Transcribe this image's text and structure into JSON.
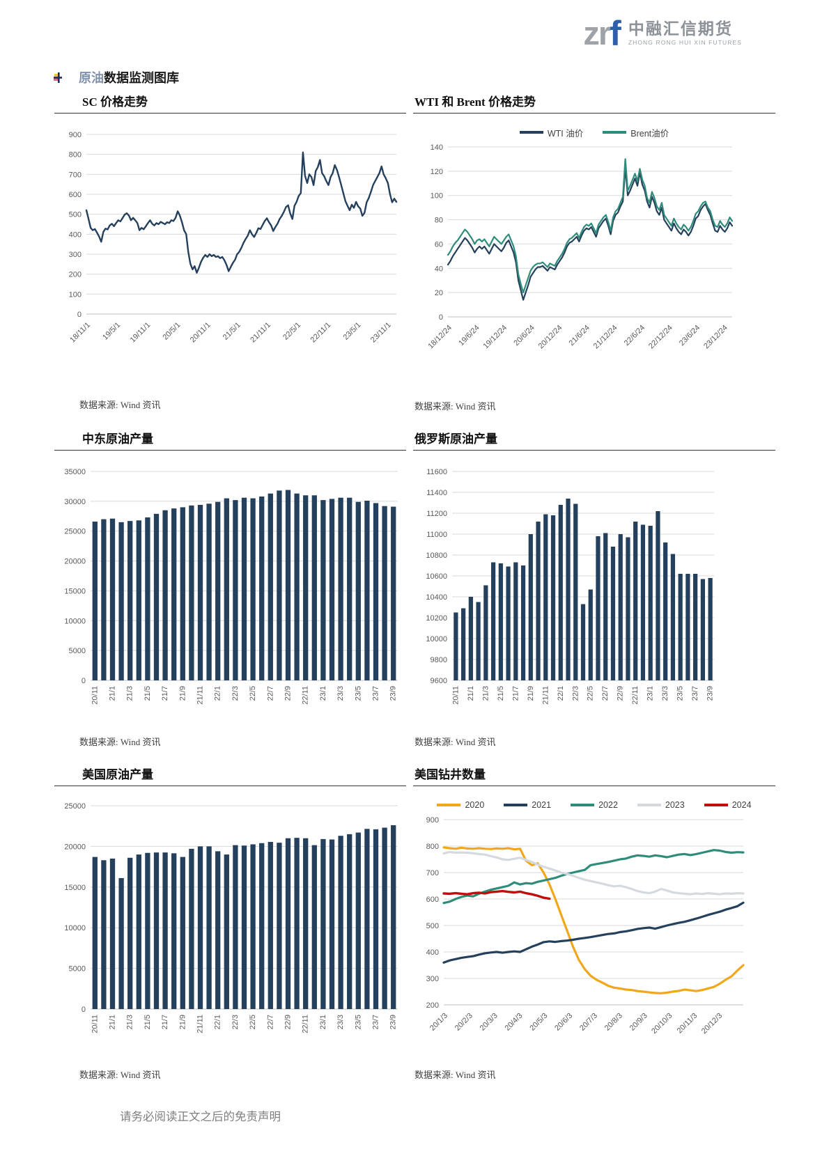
{
  "header": {
    "logo_zr": "zr",
    "logo_f": "f",
    "company_cn": "中融汇信期货",
    "company_en": "ZHONG RONG HUI XIN FUTURES"
  },
  "page_title": {
    "highlight": "原油",
    "rest": "数据监测图库"
  },
  "source_label": "数据来源: Wind 资讯",
  "footer": {
    "disclaimer": "请务必阅读正文之后的免责声明"
  },
  "colors": {
    "navy": "#24405C",
    "teal": "#2E8C7A",
    "orange": "#F2A71B",
    "gray_2023": "#D6DADE",
    "red_2024": "#C00D0D",
    "logo_blue": "#2F5FA8",
    "grid": "#D9D9D9"
  },
  "chart_data": [
    {
      "type": "line",
      "title": "SC 价格走势",
      "y_min": 0,
      "y_max": 900,
      "y_step": 100,
      "x_labels": [
        "18/11/1",
        "19/5/1",
        "19/11/1",
        "20/5/1",
        "20/11/1",
        "21/5/1",
        "21/11/1",
        "22/5/1",
        "22/11/1",
        "23/5/1",
        "23/11/1"
      ],
      "legend": false,
      "series": [
        {
          "name": "SC",
          "color": "#24405C",
          "width": 2.4,
          "values": [
            520,
            478,
            432,
            420,
            426,
            408,
            388,
            362,
            412,
            428,
            424,
            444,
            452,
            440,
            456,
            470,
            464,
            480,
            498,
            505,
            494,
            470,
            482,
            470,
            456,
            420,
            432,
            425,
            440,
            456,
            470,
            452,
            444,
            456,
            450,
            462,
            456,
            450,
            460,
            456,
            470,
            466,
            482,
            515,
            494,
            460,
            420,
            400,
            310,
            252,
            224,
            240,
            207,
            232,
            262,
            282,
            296,
            286,
            300,
            290,
            296,
            286,
            290,
            280,
            286,
            270,
            246,
            215,
            236,
            256,
            272,
            300,
            312,
            332,
            356,
            376,
            392,
            420,
            400,
            386,
            406,
            430,
            426,
            446,
            466,
            480,
            460,
            444,
            416,
            436,
            452,
            476,
            492,
            512,
            536,
            545,
            504,
            476,
            542,
            562,
            592,
            606,
            810,
            692,
            656,
            700,
            686,
            646,
            716,
            736,
            772,
            706,
            690,
            666,
            646,
            686,
            706,
            746,
            722,
            686,
            646,
            606,
            566,
            542,
            520,
            548,
            532,
            562,
            540,
            528,
            492,
            508,
            560,
            582,
            612,
            646,
            666,
            686,
            706,
            740,
            700,
            680,
            656,
            600,
            560,
            578,
            562
          ]
        }
      ]
    },
    {
      "type": "line",
      "title": "WTI 和 Brent 价格走势",
      "y_min": 0,
      "y_max": 140,
      "y_step": 20,
      "x_labels": [
        "18/12/24",
        "19/6/24",
        "19/12/24",
        "20/6/24",
        "20/12/24",
        "21/6/24",
        "21/12/24",
        "22/6/24",
        "22/12/24",
        "23/6/24",
        "23/12/24"
      ],
      "legend": true,
      "series": [
        {
          "name": "WTI 油价",
          "color": "#24405C",
          "width": 2.2,
          "values": [
            43,
            46,
            50,
            53,
            56,
            59,
            62,
            65,
            63,
            60,
            57,
            53,
            56,
            58,
            56,
            58,
            55,
            52,
            56,
            60,
            58,
            56,
            54,
            57,
            61,
            63,
            58,
            53,
            45,
            30,
            22,
            14,
            20,
            26,
            33,
            36,
            39,
            41,
            41,
            42,
            40,
            38,
            41,
            40,
            39,
            43,
            46,
            49,
            53,
            58,
            61,
            62,
            64,
            66,
            62,
            67,
            71,
            73,
            72,
            74,
            70,
            66,
            73,
            76,
            79,
            81,
            75,
            68,
            79,
            84,
            86,
            91,
            95,
            123,
            100,
            104,
            109,
            114,
            108,
            119,
            109,
            104,
            95,
            90,
            99,
            94,
            87,
            84,
            90,
            80,
            77,
            74,
            71,
            77,
            73,
            70,
            68,
            72,
            70,
            67,
            70,
            75,
            81,
            83,
            88,
            91,
            93,
            88,
            84,
            77,
            71,
            70,
            75,
            72,
            70,
            73,
            78,
            75
          ]
        },
        {
          "name": "Brent油价",
          "color": "#2E8C7A",
          "width": 2.2,
          "values": [
            51,
            54,
            58,
            61,
            63,
            66,
            69,
            72,
            70,
            67,
            64,
            60,
            63,
            64,
            62,
            64,
            61,
            58,
            62,
            66,
            64,
            62,
            60,
            63,
            66,
            68,
            63,
            58,
            50,
            35,
            27,
            20,
            26,
            32,
            38,
            41,
            43,
            44,
            44,
            45,
            43,
            41,
            44,
            43,
            42,
            46,
            49,
            52,
            56,
            61,
            64,
            65,
            67,
            69,
            65,
            70,
            74,
            76,
            75,
            77,
            73,
            69,
            76,
            79,
            82,
            84,
            78,
            71,
            82,
            87,
            89,
            94,
            99,
            130,
            104,
            108,
            113,
            118,
            112,
            122,
            113,
            108,
            98,
            94,
            103,
            98,
            91,
            88,
            94,
            84,
            81,
            78,
            75,
            81,
            77,
            74,
            72,
            76,
            74,
            71,
            74,
            79,
            85,
            87,
            91,
            94,
            95,
            90,
            87,
            80,
            75,
            74,
            79,
            76,
            74,
            77,
            82,
            79
          ]
        }
      ]
    },
    {
      "type": "bar",
      "title": "中东原油产量",
      "y_min": 0,
      "y_max": 35000,
      "y_step": 5000,
      "color": "#24405C",
      "x_labels": [
        "20/11",
        "21/1",
        "21/3",
        "21/5",
        "21/7",
        "21/9",
        "21/11",
        "22/1",
        "22/3",
        "22/5",
        "22/7",
        "22/9",
        "22/11",
        "23/1",
        "23/3",
        "23/5",
        "23/7",
        "23/9"
      ],
      "values": [
        26600,
        27000,
        27100,
        26500,
        26700,
        26800,
        27300,
        27900,
        28500,
        28800,
        29000,
        29300,
        29400,
        29600,
        29900,
        30500,
        30200,
        30600,
        30500,
        30800,
        31300,
        31800,
        31900,
        31300,
        31000,
        31000,
        30200,
        30400,
        30600,
        30600,
        29900,
        30100,
        29700,
        29200,
        29100
      ]
    },
    {
      "type": "bar",
      "title": "俄罗斯原油产量",
      "y_min": 9600,
      "y_max": 11600,
      "y_step": 200,
      "color": "#24405C",
      "x_labels": [
        "20/11",
        "21/1",
        "21/3",
        "21/5",
        "21/7",
        "21/9",
        "21/11",
        "22/1",
        "22/3",
        "22/5",
        "22/7",
        "22/9",
        "22/11",
        "23/1",
        "23/3",
        "23/5",
        "23/7",
        "23/9"
      ],
      "values": [
        10250,
        10290,
        10400,
        10350,
        10510,
        10730,
        10720,
        10690,
        10730,
        10700,
        11000,
        11120,
        11190,
        11180,
        11280,
        11340,
        11290,
        10330,
        10470,
        10980,
        11010,
        10880,
        11000,
        10970,
        11120,
        11090,
        11080,
        11220,
        10920,
        10810,
        10620,
        10620,
        10620,
        10570,
        10580
      ]
    },
    {
      "type": "bar",
      "title": "美国原油产量",
      "y_min": 0,
      "y_max": 25000,
      "y_step": 5000,
      "color": "#24405C",
      "x_labels": [
        "20/11",
        "21/1",
        "21/3",
        "21/5",
        "21/7",
        "21/9",
        "21/11",
        "22/1",
        "22/3",
        "22/5",
        "22/7",
        "22/9",
        "22/11",
        "23/1",
        "23/3",
        "23/5",
        "23/7",
        "23/9"
      ],
      "values": [
        18700,
        18300,
        18500,
        16100,
        18600,
        19000,
        19200,
        19250,
        19250,
        19150,
        18700,
        19700,
        20000,
        20000,
        19400,
        19000,
        20150,
        20100,
        20250,
        20400,
        20550,
        20450,
        21000,
        21050,
        21000,
        20150,
        20900,
        20850,
        21300,
        21500,
        21700,
        22150,
        22100,
        22300,
        22600
      ]
    },
    {
      "type": "line",
      "title": "美国钻井数量",
      "y_min": 200,
      "y_max": 900,
      "y_step": 100,
      "x_labels": [
        "20/1/3",
        "20/2/3",
        "20/3/3",
        "20/4/3",
        "20/5/3",
        "20/6/3",
        "20/7/3",
        "20/8/3",
        "20/9/3",
        "20/10/3",
        "20/11/3",
        "20/12/3"
      ],
      "x_label_mode": "start",
      "x_domain": 52,
      "legend": true,
      "series": [
        {
          "name": "2020",
          "color": "#F2A71B",
          "width": 3.2,
          "values": [
            795,
            792,
            790,
            794,
            791,
            790,
            792,
            790,
            789,
            791,
            790,
            792,
            788,
            790,
            745,
            728,
            735,
            700,
            655,
            600,
            540,
            480,
            420,
            370,
            335,
            310,
            295,
            284,
            272,
            265,
            262,
            258,
            256,
            252,
            250,
            247,
            245,
            244,
            246,
            250,
            253,
            258,
            255,
            252,
            256,
            262,
            268,
            280,
            295,
            308,
            330,
            350
          ]
        },
        {
          "name": "2021",
          "color": "#24405C",
          "width": 3.2,
          "values": [
            360,
            368,
            373,
            378,
            381,
            384,
            390,
            395,
            398,
            400,
            397,
            400,
            402,
            400,
            410,
            420,
            428,
            437,
            440,
            438,
            441,
            443,
            446,
            450,
            453,
            456,
            460,
            464,
            468,
            470,
            475,
            478,
            482,
            487,
            490,
            492,
            488,
            494,
            500,
            505,
            510,
            514,
            520,
            526,
            533,
            540,
            546,
            552,
            560,
            566,
            573,
            586
          ]
        },
        {
          "name": "2022",
          "color": "#2E8C7A",
          "width": 3.2,
          "values": [
            585,
            590,
            600,
            608,
            613,
            610,
            620,
            628,
            635,
            640,
            645,
            650,
            663,
            655,
            660,
            658,
            665,
            670,
            675,
            680,
            688,
            695,
            700,
            705,
            710,
            728,
            732,
            736,
            740,
            745,
            750,
            753,
            760,
            765,
            763,
            760,
            765,
            762,
            758,
            763,
            768,
            770,
            766,
            770,
            775,
            780,
            785,
            783,
            778,
            775,
            777,
            776
          ]
        },
        {
          "name": "2023",
          "color": "#D6DADE",
          "width": 3.2,
          "values": [
            772,
            778,
            775,
            776,
            775,
            773,
            770,
            768,
            762,
            757,
            750,
            748,
            752,
            756,
            748,
            740,
            730,
            722,
            715,
            708,
            700,
            695,
            688,
            680,
            673,
            668,
            663,
            658,
            652,
            648,
            650,
            645,
            638,
            630,
            625,
            622,
            628,
            638,
            632,
            625,
            622,
            620,
            618,
            621,
            619,
            622,
            620,
            618,
            621,
            620,
            622,
            621
          ]
        },
        {
          "name": "2024",
          "color": "#C00D0D",
          "width": 3.4,
          "values": [
            621,
            620,
            622,
            620,
            618,
            622,
            624,
            621,
            626,
            628,
            630,
            627,
            625,
            628,
            622,
            618,
            612,
            605,
            601
          ]
        }
      ]
    }
  ]
}
